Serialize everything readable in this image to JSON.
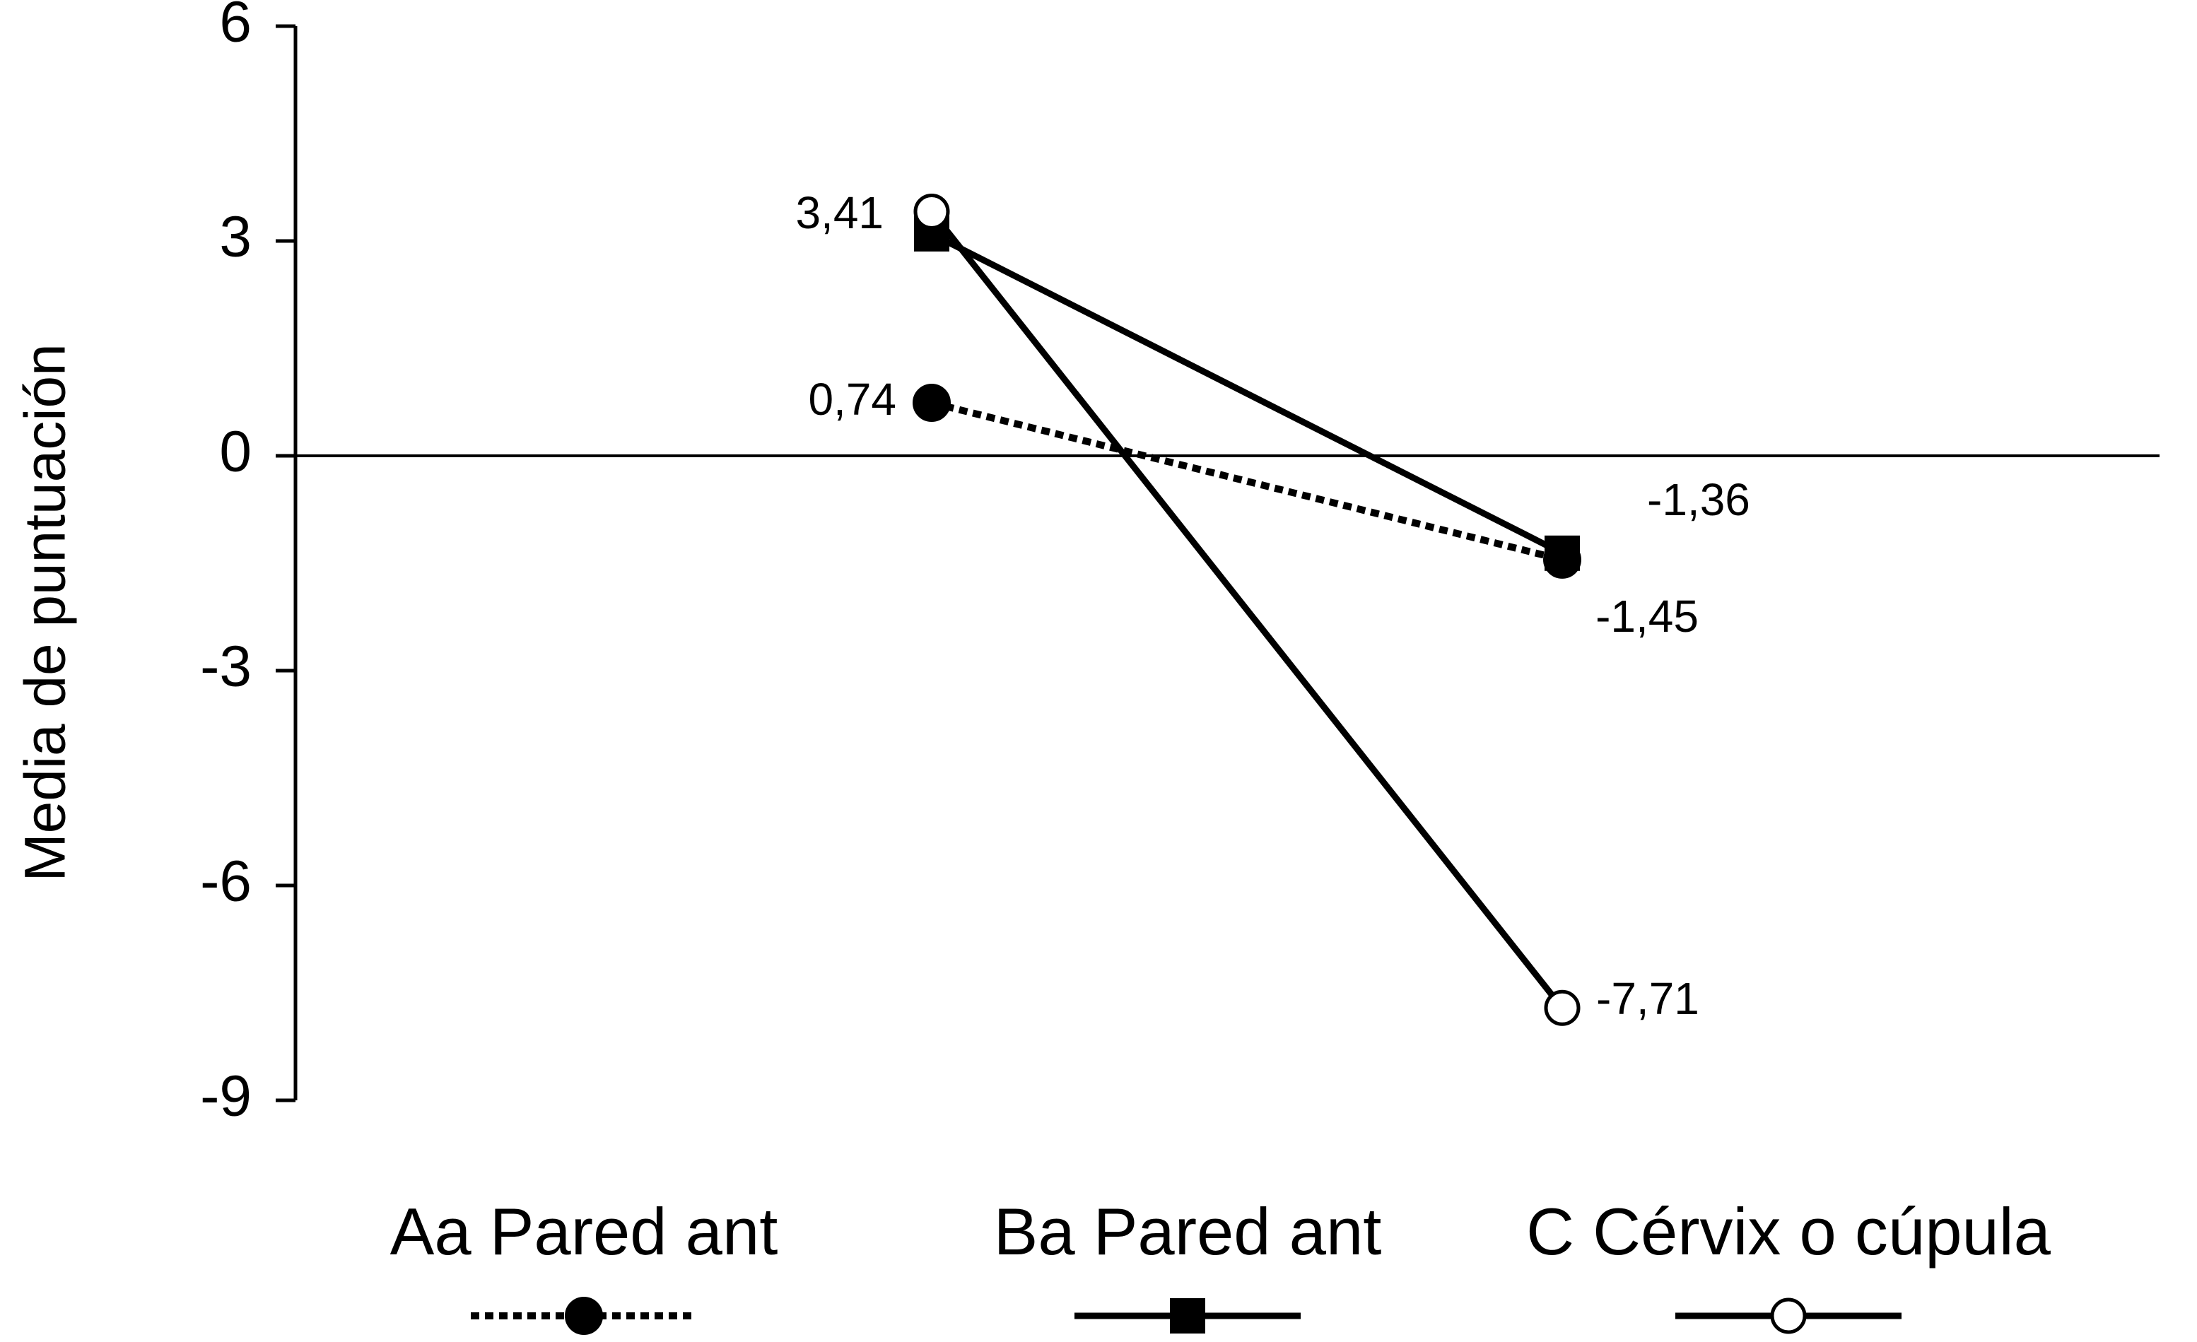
{
  "chart_data": {
    "type": "line",
    "ylabel": "Media de puntuación",
    "xlabel": "",
    "ylim": [
      -9,
      6
    ],
    "yticks": [
      6,
      3,
      0,
      -3,
      -6,
      -9
    ],
    "ytick_labels": [
      "6",
      "3",
      "0",
      "-3",
      "-6",
      "-9"
    ],
    "grid": false,
    "zero_line": true,
    "legend_position": "bottom",
    "series": [
      {
        "name": "Aa Pared ant",
        "values": [
          0.74,
          -1.45
        ],
        "labels": [
          "0,74",
          "-1,45"
        ],
        "marker": "filled-circle",
        "line_style": "dotted",
        "color": "#000000"
      },
      {
        "name": "Ba Pared ant",
        "values": [
          3.1,
          -1.36
        ],
        "labels": [
          "",
          "-1,36"
        ],
        "marker": "filled-square",
        "line_style": "solid",
        "color": "#000000"
      },
      {
        "name": "C Cérvix o cúpula",
        "values": [
          3.41,
          -7.71
        ],
        "labels": [
          "3,41",
          "-7,71"
        ],
        "marker": "open-circle",
        "line_style": "solid",
        "color": "#000000"
      }
    ]
  }
}
